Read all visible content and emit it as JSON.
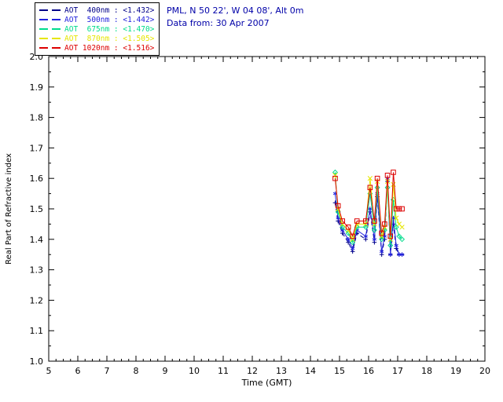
{
  "header": {
    "line1": "PML, N 50 22', W 04 08', Alt 0m",
    "line2": "Data from: 30 Apr 2007",
    "color": "#0000A8"
  },
  "legend": {
    "position": "top-left",
    "items": [
      {
        "label": "AOT  400nm : <1.432>",
        "color": "#000088"
      },
      {
        "label": "AOT  500nm : <1.442>",
        "color": "#2222DD"
      },
      {
        "label": "AOT  675nm : <1.470>",
        "color": "#00DC8C"
      },
      {
        "label": "AOT  870nm : <1.505>",
        "color": "#E6E600"
      },
      {
        "label": "AOT 1020nm : <1.516>",
        "color": "#DD0000"
      }
    ]
  },
  "chart_data": {
    "type": "line",
    "title": "",
    "xlabel": "Time (GMT)",
    "ylabel": "Real Part of Refractive index",
    "xlim": [
      5,
      20
    ],
    "ylim": [
      1.0,
      2.0
    ],
    "x_ticks": [
      5,
      6,
      7,
      8,
      9,
      10,
      11,
      12,
      13,
      14,
      15,
      16,
      17,
      18,
      19,
      20
    ],
    "y_ticks": [
      1.0,
      1.1,
      1.2,
      1.3,
      1.4,
      1.5,
      1.6,
      1.7,
      1.8,
      1.9,
      2.0
    ],
    "x_minor_step": 0.25,
    "y_minor_step": 0.05,
    "grid": false,
    "legend_position": "top-left",
    "axis_color": "#000000",
    "x": [
      14.85,
      14.95,
      15.1,
      15.3,
      15.45,
      15.6,
      15.9,
      16.05,
      16.2,
      16.3,
      16.45,
      16.55,
      16.65,
      16.75,
      16.85,
      16.95,
      17.05,
      17.15
    ],
    "series": [
      {
        "name": "AOT 400nm",
        "mean": "<1.432>",
        "color": "#000088",
        "marker": "plus",
        "linestyle": "dashed",
        "values": [
          1.52,
          1.46,
          1.42,
          1.39,
          1.36,
          1.42,
          1.4,
          1.49,
          1.39,
          1.54,
          1.35,
          1.4,
          1.59,
          1.35,
          1.45,
          1.37,
          1.35,
          1.35
        ]
      },
      {
        "name": "AOT 500nm",
        "mean": "<1.442>",
        "color": "#2222DD",
        "marker": "asterisk",
        "linestyle": "solid",
        "values": [
          1.55,
          1.47,
          1.43,
          1.4,
          1.37,
          1.43,
          1.41,
          1.5,
          1.4,
          1.55,
          1.36,
          1.41,
          1.6,
          1.35,
          1.47,
          1.38,
          1.35,
          1.35
        ]
      },
      {
        "name": "AOT 675nm",
        "mean": "<1.470>",
        "color": "#00DC8C",
        "marker": "diamond",
        "linestyle": "solid",
        "values": [
          1.62,
          1.49,
          1.44,
          1.42,
          1.39,
          1.44,
          1.44,
          1.55,
          1.43,
          1.57,
          1.4,
          1.43,
          1.57,
          1.38,
          1.53,
          1.44,
          1.41,
          1.4
        ]
      },
      {
        "name": "AOT 870nm",
        "mean": "<1.505>",
        "color": "#E6E600",
        "marker": "x",
        "linestyle": "solid",
        "values": [
          1.61,
          1.5,
          1.45,
          1.43,
          1.4,
          1.45,
          1.45,
          1.6,
          1.45,
          1.59,
          1.41,
          1.44,
          1.59,
          1.4,
          1.58,
          1.47,
          1.45,
          1.44
        ]
      },
      {
        "name": "AOT 1020nm",
        "mean": "<1.516>",
        "color": "#DD0000",
        "marker": "square",
        "linestyle": "solid",
        "values": [
          1.6,
          1.51,
          1.46,
          1.44,
          1.41,
          1.46,
          1.46,
          1.57,
          1.46,
          1.6,
          1.42,
          1.45,
          1.61,
          1.41,
          1.62,
          1.5,
          1.5,
          1.5
        ]
      }
    ]
  }
}
